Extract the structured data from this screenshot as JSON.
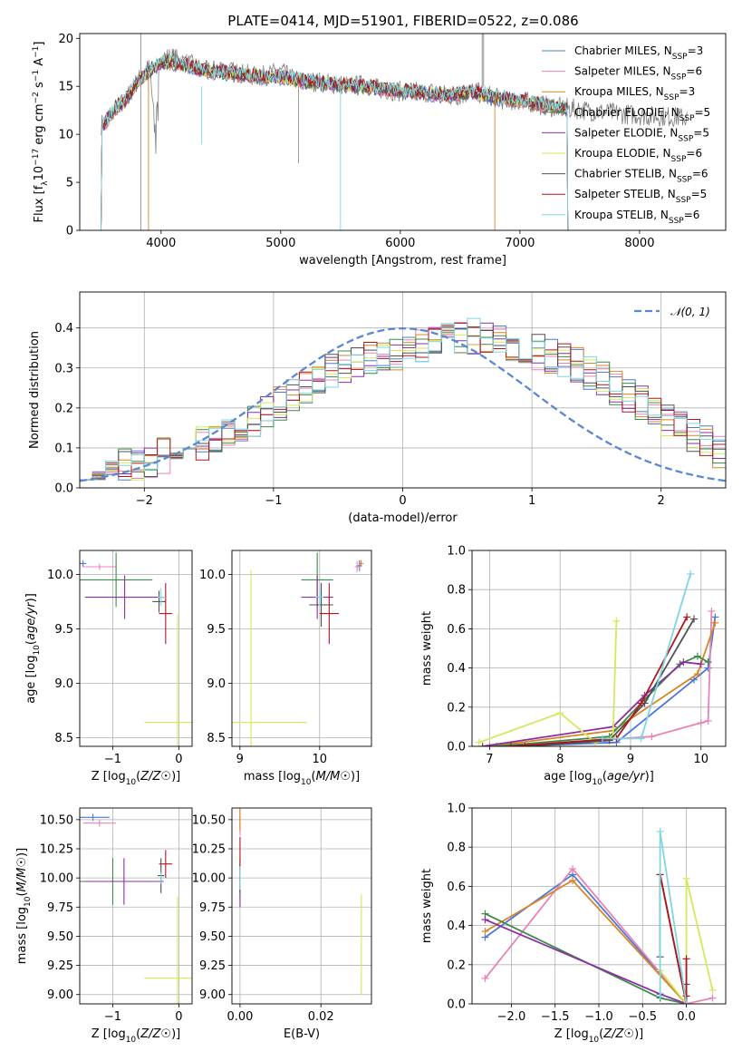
{
  "figure": {
    "title": "PLATE=0414, MJD=51901, FIBERID=0522, z=0.086"
  },
  "series_colors": [
    "#4c78d6",
    "#e783b7",
    "#d98526",
    "#3d8a4a",
    "#8b2fa3",
    "#d5e85b",
    "#505050",
    "#b0151f",
    "#7fd6e0"
  ],
  "chart_data": [
    {
      "id": "spectrum",
      "type": "line",
      "xlabel": "wavelength [Angstrom, rest frame]",
      "ylabel": "Flux [f_λ 10^-17 erg cm^-2 s^-1 A^-1]",
      "xlim": [
        3320,
        8720
      ],
      "ylim": [
        0,
        20.5
      ],
      "xticks": [
        4000,
        5000,
        6000,
        7000,
        8000
      ],
      "yticks": [
        0,
        5,
        10,
        15,
        20
      ],
      "grid": false,
      "legend_loc": "right",
      "legend": [
        {
          "base": "Chabrier MILES, N",
          "sub": "SSP",
          "tail": "=3"
        },
        {
          "base": "Salpeter MILES, N",
          "sub": "SSP",
          "tail": "=6"
        },
        {
          "base": "Kroupa MILES, N",
          "sub": "SSP",
          "tail": "=3"
        },
        {
          "base": "Chabrier ELODIE, N",
          "sub": "SSP",
          "tail": "=5"
        },
        {
          "base": "Salpeter ELODIE, N",
          "sub": "SSP",
          "tail": "=5"
        },
        {
          "base": "Kroupa ELODIE, N",
          "sub": "SSP",
          "tail": "=6"
        },
        {
          "base": "Chabrier STELIB, N",
          "sub": "SSP",
          "tail": "=6"
        },
        {
          "base": "Salpeter STELIB, N",
          "sub": "SSP",
          "tail": "=5"
        },
        {
          "base": "Kroupa STELIB, N",
          "sub": "SSP",
          "tail": "=6"
        }
      ],
      "data_flux": {
        "x": [
          3500,
          3600,
          3700,
          3800,
          3900,
          3950,
          4000,
          4100,
          4200,
          4300,
          4400,
          4500,
          4600,
          4700,
          4800,
          4900,
          5000,
          5100,
          5200,
          5300,
          5400,
          5500,
          5600,
          5700,
          5800,
          5900,
          6000,
          6100,
          6200,
          6300,
          6400,
          6500,
          6600,
          6700,
          6800,
          6900,
          7000,
          7100,
          7200,
          7300,
          7400,
          7500,
          7600,
          7700,
          7800,
          7900,
          8000,
          8100,
          8200,
          8300,
          8400
        ],
        "y": [
          11,
          12.5,
          13.5,
          15.5,
          17,
          12,
          18,
          18,
          17.5,
          17,
          16.5,
          17,
          16.5,
          16.3,
          16,
          16.2,
          16.5,
          15.8,
          15.5,
          15.5,
          15.3,
          15.2,
          15,
          15.2,
          14.8,
          14.6,
          14.5,
          14.5,
          14.3,
          14.5,
          14,
          14,
          14.5,
          14.2,
          13.8,
          13.5,
          13.5,
          13.3,
          13,
          12.8,
          12.7,
          12.6,
          12.4,
          12.3,
          12.2,
          12.1,
          12,
          11.9,
          11.9,
          11.8,
          11.7
        ]
      },
      "model_flux": {
        "x": [
          3500,
          3600,
          3700,
          3800,
          3900,
          4000,
          4100,
          4200,
          4300,
          4400,
          4500,
          4600,
          4700,
          4800,
          4900,
          5000,
          5200,
          5400,
          5600,
          5800,
          6000,
          6200,
          6400,
          6600,
          6800,
          7000,
          7200,
          7400
        ],
        "y": [
          10.5,
          12.5,
          13.5,
          15.5,
          16.5,
          17.5,
          17.5,
          17.2,
          16.8,
          16.5,
          16.5,
          16.3,
          16.2,
          16,
          16,
          16,
          15.5,
          15.3,
          15.1,
          14.8,
          14.5,
          14.3,
          14.1,
          14.4,
          13.8,
          13.5,
          13,
          12.7
        ]
      },
      "model_end_wavelength": [
        7400,
        7400,
        7400,
        7400,
        7400,
        7400,
        7400,
        7400,
        7400
      ]
    },
    {
      "id": "residuals",
      "type": "histogram",
      "xlabel": "(data-model)/error",
      "ylabel": "Normed distribution",
      "xlim": [
        -2.5,
        2.5
      ],
      "ylim": [
        0,
        0.49
      ],
      "xticks": [
        -2,
        -1,
        0,
        1,
        2
      ],
      "yticks": [
        0,
        0.1,
        0.2,
        0.3,
        0.4
      ],
      "grid": true,
      "legend_loc": "top-right",
      "legend": [
        {
          "label": "𝒩(0, 1)"
        }
      ],
      "bin_width": 0.1,
      "bin_start": -2.5,
      "reference_curve": {
        "type": "normal",
        "mean": 0,
        "sigma": 1
      },
      "base_values": [
        0.04,
        0.045,
        0.05,
        0.055,
        0.06,
        0.07,
        0.08,
        0.09,
        0.1,
        0.11,
        0.12,
        0.13,
        0.15,
        0.17,
        0.19,
        0.21,
        0.23,
        0.25,
        0.27,
        0.29,
        0.3,
        0.31,
        0.32,
        0.33,
        0.34,
        0.35,
        0.36,
        0.37,
        0.37,
        0.38,
        0.38,
        0.37,
        0.37,
        0.36,
        0.35,
        0.34,
        0.33,
        0.32,
        0.31,
        0.29,
        0.27,
        0.25,
        0.23,
        0.21,
        0.19,
        0.17,
        0.15,
        0.13,
        0.11,
        0.09
      ]
    },
    {
      "id": "age-vs-Z",
      "type": "errorbar",
      "xlabel": "Z [log10(Z/Z☉)]",
      "ylabel": "age  [log10(age/yr)]",
      "xlim": [
        -1.5,
        0.2
      ],
      "ylim": [
        8.42,
        10.22
      ],
      "xticks": [
        -1,
        0
      ],
      "yticks": [
        8.5,
        9.0,
        9.5,
        10.0
      ],
      "grid": true,
      "points": [
        {
          "x": -1.45,
          "xerr": 0.05,
          "y": 10.1,
          "yerr": 0.03
        },
        {
          "x": -1.2,
          "xerr": 0.25,
          "y": 10.07,
          "yerr": 0.03
        },
        {
          "x": -1.5,
          "xerr": 0.0,
          "y": 10.1,
          "yerr": 0.03
        },
        {
          "x": -0.95,
          "xerr": 0.55,
          "y": 9.95,
          "yerr": 0.25
        },
        {
          "x": -0.82,
          "xerr": 0.6,
          "y": 9.79,
          "yerr": 0.2
        },
        {
          "x": -0.02,
          "xerr": 0.5,
          "y": 8.64,
          "yerr": 0.99
        },
        {
          "x": -0.3,
          "xerr": 0.1,
          "y": 9.75,
          "yerr": 0.1
        },
        {
          "x": -0.2,
          "xerr": 0.1,
          "y": 9.64,
          "yerr": 0.28
        },
        {
          "x": -0.27,
          "xerr": 0.05,
          "y": 9.79,
          "yerr": 0.08
        }
      ]
    },
    {
      "id": "age-vs-mass",
      "type": "errorbar",
      "xlabel": "mass [log10(M/M☉)]",
      "ylabel": "",
      "xlim": [
        8.9,
        10.65
      ],
      "ylim": [
        8.42,
        10.22
      ],
      "xticks": [
        9,
        10
      ],
      "yticks": [
        8.5,
        9.0,
        9.5,
        10.0
      ],
      "grid": true,
      "points": [
        {
          "x": 10.5,
          "xerr": 0.03,
          "y": 10.08,
          "yerr": 0.05
        },
        {
          "x": 10.47,
          "xerr": 0.03,
          "y": 10.07,
          "yerr": 0.05
        },
        {
          "x": 10.52,
          "xerr": 0.03,
          "y": 10.1,
          "yerr": 0.03
        },
        {
          "x": 9.97,
          "xerr": 0.2,
          "y": 9.95,
          "yerr": 0.25
        },
        {
          "x": 9.97,
          "xerr": 0.2,
          "y": 9.79,
          "yerr": 0.2
        },
        {
          "x": 9.14,
          "xerr": 0.7,
          "y": 8.64,
          "yerr": 1.4
        },
        {
          "x": 10.02,
          "xerr": 0.15,
          "y": 9.72,
          "yerr": 0.2
        },
        {
          "x": 10.12,
          "xerr": 0.12,
          "y": 9.64,
          "yerr": 0.28
        },
        {
          "x": 10.0,
          "xerr": 0.05,
          "y": 9.79,
          "yerr": 0.08
        }
      ]
    },
    {
      "id": "weight-vs-age",
      "type": "line",
      "xlabel": "age  [log10(age/yr)]",
      "ylabel": "mass weight",
      "xlim": [
        6.75,
        10.35
      ],
      "ylim": [
        0,
        1.0
      ],
      "xticks": [
        7,
        8,
        9,
        10
      ],
      "yticks": [
        0.0,
        0.2,
        0.4,
        0.6,
        0.8,
        1.0
      ],
      "grid": true,
      "series": [
        {
          "x": [
            7.3,
            8.8,
            9.9,
            10.1,
            10.2
          ],
          "y": [
            0.0,
            0.02,
            0.34,
            0.4,
            0.66
          ]
        },
        {
          "x": [
            7.2,
            9.3,
            10.0,
            10.1,
            10.15
          ],
          "y": [
            0.0,
            0.05,
            0.12,
            0.13,
            0.69
          ]
        },
        {
          "x": [
            7.0,
            8.75,
            9.95,
            10.2
          ],
          "y": [
            0.0,
            0.08,
            0.37,
            0.63
          ]
        },
        {
          "x": [
            7.1,
            8.7,
            9.2,
            9.7,
            9.95,
            10.1
          ],
          "y": [
            0.0,
            0.05,
            0.24,
            0.42,
            0.46,
            0.43
          ]
        },
        {
          "x": [
            6.9,
            8.75,
            9.2,
            9.75,
            10.0
          ],
          "y": [
            0.0,
            0.1,
            0.26,
            0.43,
            0.42
          ]
        },
        {
          "x": [
            6.85,
            8.0,
            8.5,
            8.75,
            8.8
          ],
          "y": [
            0.02,
            0.17,
            0.02,
            0.05,
            0.64
          ]
        },
        {
          "x": [
            7.5,
            8.7,
            9.2,
            9.9
          ],
          "y": [
            0.0,
            0.03,
            0.22,
            0.65
          ]
        },
        {
          "x": [
            7.3,
            8.8,
            9.15,
            9.8
          ],
          "y": [
            0.0,
            0.04,
            0.22,
            0.66
          ]
        },
        {
          "x": [
            8.6,
            9.15,
            9.85
          ],
          "y": [
            0.04,
            0.04,
            0.88
          ]
        }
      ]
    },
    {
      "id": "mass-vs-Z",
      "type": "errorbar",
      "xlabel": "Z [log10(Z/Z☉)]",
      "ylabel": "mass [log10(M/M☉)]",
      "xlim": [
        -1.5,
        0.2
      ],
      "ylim": [
        8.92,
        10.6
      ],
      "xticks": [
        -1,
        0
      ],
      "yticks": [
        9.0,
        9.25,
        9.5,
        9.75,
        10.0,
        10.25,
        10.5
      ],
      "grid": true,
      "points": [
        {
          "x": -1.3,
          "xerr": 0.25,
          "y": 10.52,
          "yerr": 0.03
        },
        {
          "x": -1.2,
          "xerr": 0.25,
          "y": 10.47,
          "yerr": 0.03
        },
        {
          "x": -1.5,
          "xerr": 0.0,
          "y": 10.5,
          "yerr": 0.2
        },
        {
          "x": -1.0,
          "xerr": 0.5,
          "y": 9.97,
          "yerr": 0.2
        },
        {
          "x": -0.83,
          "xerr": 0.6,
          "y": 9.97,
          "yerr": 0.2
        },
        {
          "x": -0.02,
          "xerr": 0.5,
          "y": 9.14,
          "yerr": 0.7
        },
        {
          "x": -0.27,
          "xerr": 0.05,
          "y": 10.02,
          "yerr": 0.15
        },
        {
          "x": -0.2,
          "xerr": 0.1,
          "y": 10.12,
          "yerr": 0.12
        },
        {
          "x": -0.27,
          "xerr": 0.05,
          "y": 10.0,
          "yerr": 0.05
        }
      ]
    },
    {
      "id": "mass-vs-ebv",
      "type": "errorbar",
      "xlabel": "E(B-V)",
      "ylabel": "",
      "xlim": [
        -0.002,
        0.0325
      ],
      "ylim": [
        8.92,
        10.6
      ],
      "xticks": [
        0.0,
        0.02
      ],
      "yticks": [
        9.0,
        9.25,
        9.5,
        9.75,
        10.0,
        10.25,
        10.5
      ],
      "grid": true,
      "points": [
        {
          "x": 0.0,
          "xerr": 0.0,
          "y": 10.52,
          "yerr": 0.1
        },
        {
          "x": 0.0,
          "xerr": 0.0,
          "y": 10.47,
          "yerr": 0.1
        },
        {
          "x": 0.0,
          "xerr": 0.0,
          "y": 10.5,
          "yerr": 0.1
        },
        {
          "x": 0.0,
          "xerr": 0.0,
          "y": 9.97,
          "yerr": 0.15
        },
        {
          "x": 0.0,
          "xerr": 0.0,
          "y": 9.9,
          "yerr": 0.15
        },
        {
          "x": 0.03,
          "xerr": 0.0,
          "y": 9.43,
          "yerr": 0.43
        },
        {
          "x": 0.0,
          "xerr": 0.0,
          "y": 10.02,
          "yerr": 0.15
        },
        {
          "x": 0.0,
          "xerr": 0.0,
          "y": 10.2,
          "yerr": 0.15
        },
        {
          "x": 0.0,
          "xerr": 0.0,
          "y": 10.0,
          "yerr": 0.1
        }
      ]
    },
    {
      "id": "weight-vs-Z",
      "type": "line",
      "xlabel": "Z [log10(Z/Z☉)]",
      "ylabel": "mass weight",
      "xlim": [
        -2.45,
        0.45
      ],
      "ylim": [
        0,
        1.0
      ],
      "xticks": [
        -2.0,
        -1.5,
        -1.0,
        -0.5,
        0.0
      ],
      "yticks": [
        0.0,
        0.2,
        0.4,
        0.6,
        0.8,
        1.0
      ],
      "grid": true,
      "series": [
        {
          "x": [
            -2.3,
            -1.3,
            0.0
          ],
          "y": [
            0.34,
            0.66,
            0.0
          ]
        },
        {
          "x": [
            -2.3,
            -1.3,
            0.0,
            0.3
          ],
          "y": [
            0.13,
            0.69,
            0.0,
            0.03
          ]
        },
        {
          "x": [
            -2.3,
            -1.3,
            0.0
          ],
          "y": [
            0.37,
            0.63,
            0.0
          ]
        },
        {
          "x": [
            -2.3,
            -0.3,
            0.0
          ],
          "y": [
            0.46,
            0.03,
            0.0
          ]
        },
        {
          "x": [
            -2.3,
            -0.3,
            0.0
          ],
          "y": [
            0.43,
            0.05,
            0.0
          ]
        },
        {
          "x": [
            -0.3,
            0.0,
            0.0,
            0.3
          ],
          "y": [
            0.17,
            0.0,
            0.64,
            0.07
          ]
        },
        {
          "x": [
            -0.3,
            -0.3,
            0.0,
            0.0
          ],
          "y": [
            0.24,
            0.66,
            0.0,
            0.1
          ]
        },
        {
          "x": [
            -0.3,
            0.0,
            0.0,
            0.0
          ],
          "y": [
            0.66,
            0.0,
            0.23,
            0.04
          ]
        },
        {
          "x": [
            -0.3,
            -0.3,
            0.0
          ],
          "y": [
            0.04,
            0.88,
            0.0
          ]
        }
      ]
    }
  ]
}
